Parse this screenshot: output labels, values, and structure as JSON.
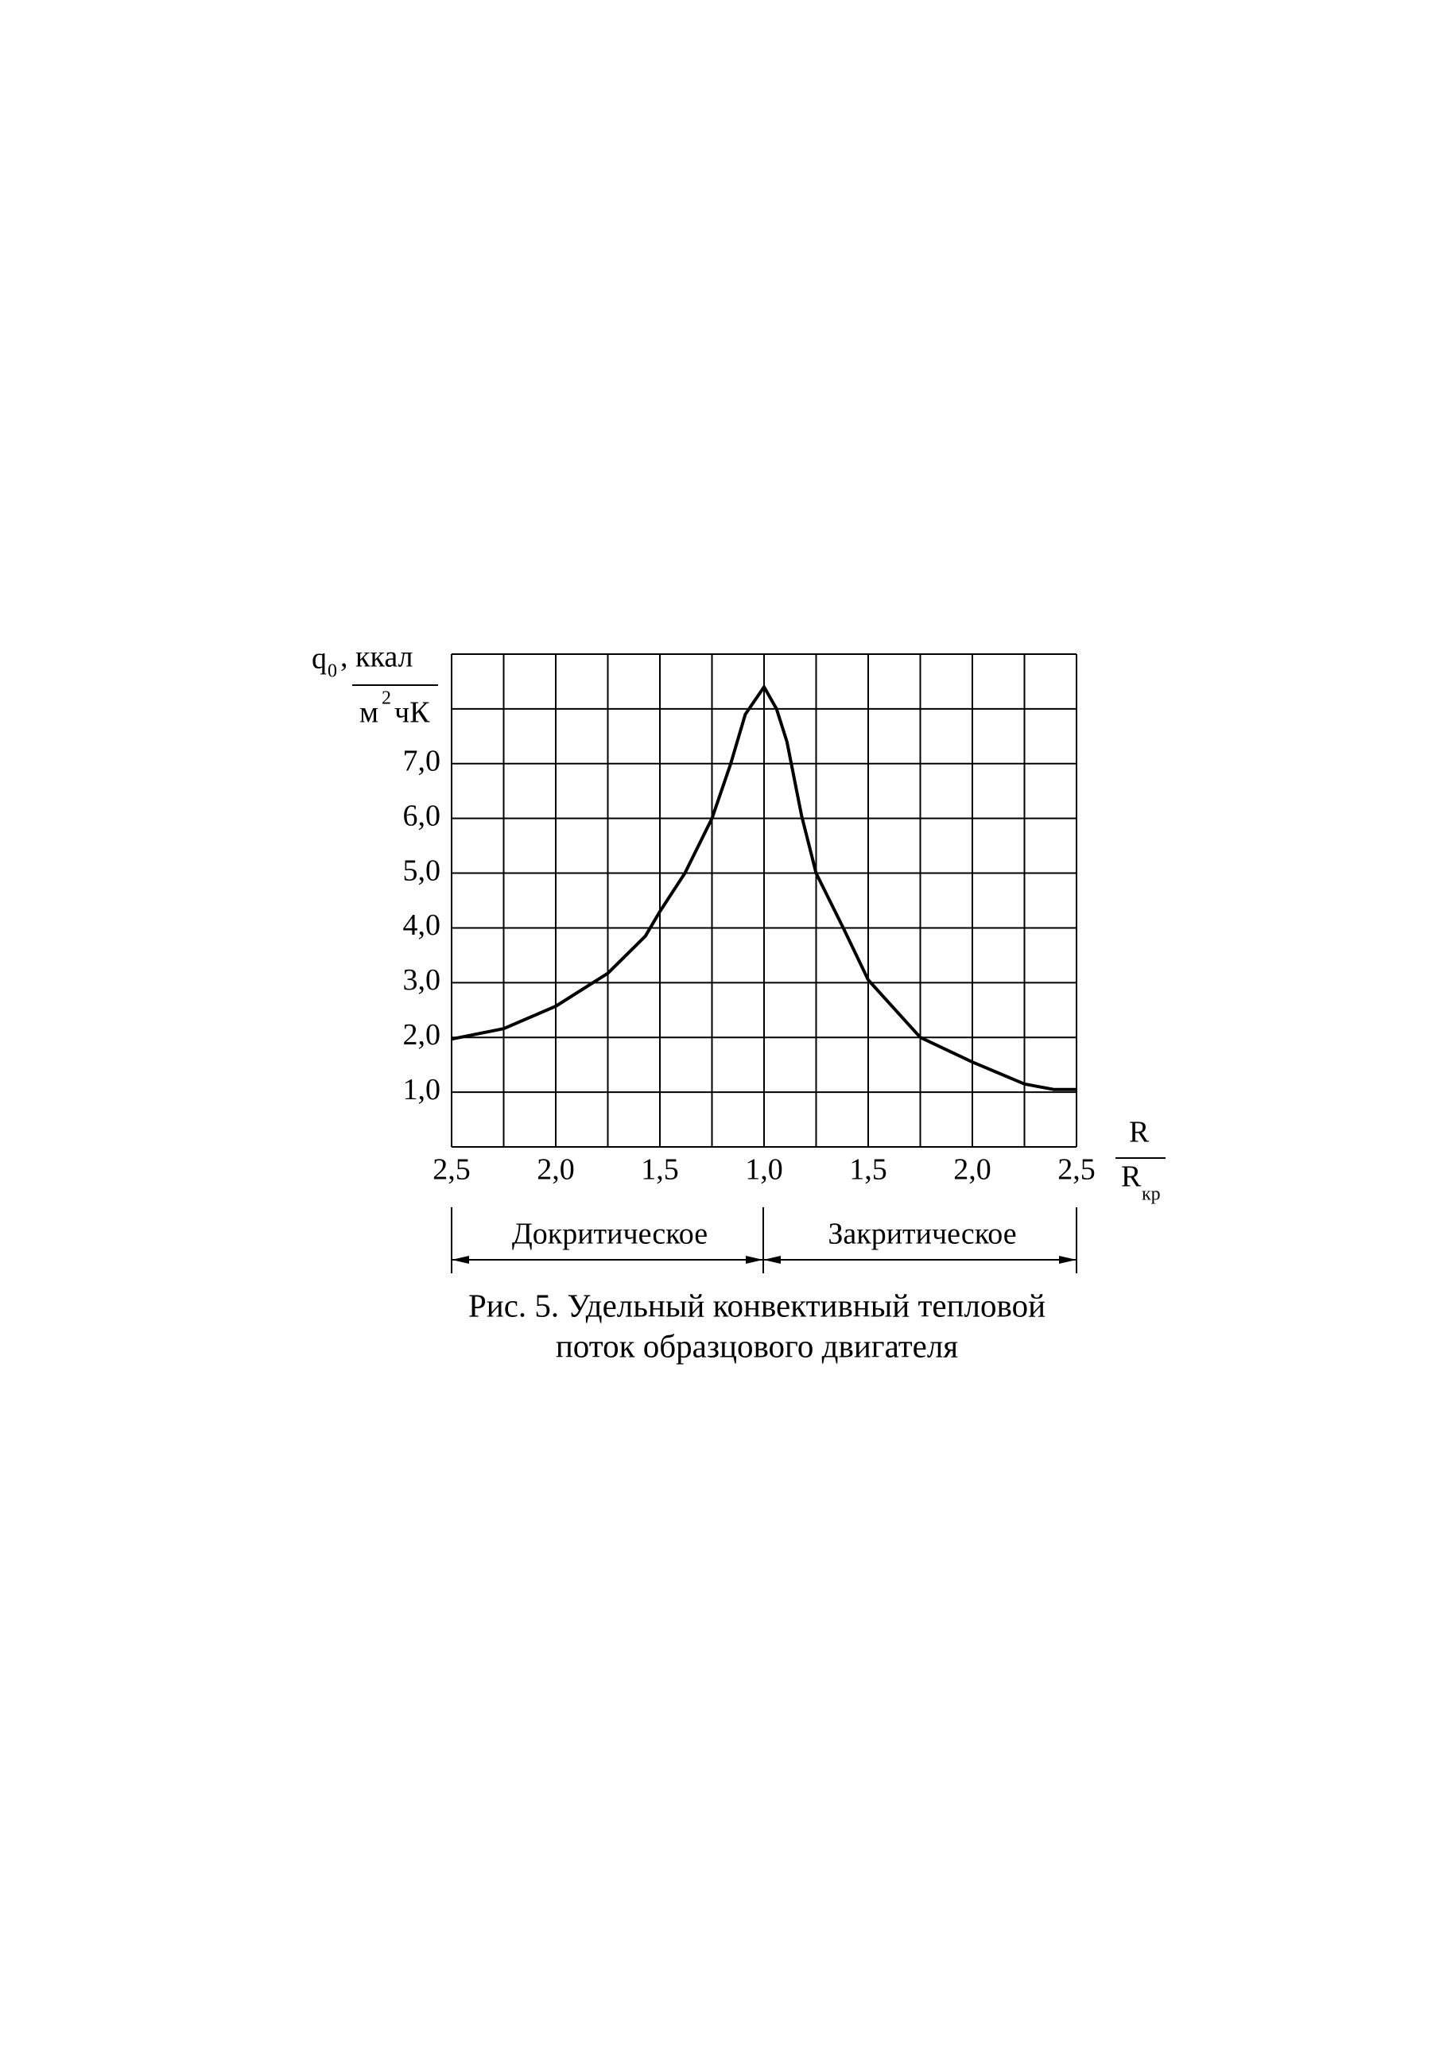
{
  "chart_data": {
    "type": "line",
    "ylabel": {
      "symbol": "q",
      "subscript": "0",
      "numerator": ", ккал",
      "denominator": "м",
      "superscript": "2",
      "denominator_rest": "чК"
    },
    "xlabel": {
      "numerator": "R",
      "denominator": "R",
      "subscript": "кр"
    },
    "x_mirrored": true,
    "regions": [
      "Докритическое",
      "Закритическое"
    ],
    "caption": [
      "Рис. 5. Удельный конвективный тепловой",
      "поток образцового двигателя"
    ],
    "xlim": [
      -2.5,
      2.5
    ],
    "ylim": [
      0,
      9
    ],
    "xticks": [
      {
        "value": -2.5,
        "label": "2,5"
      },
      {
        "value": -2.25,
        "label": null
      },
      {
        "value": -2.0,
        "label": "2,0"
      },
      {
        "value": -1.75,
        "label": null
      },
      {
        "value": -1.5,
        "label": "1,5"
      },
      {
        "value": -1.25,
        "label": null
      },
      {
        "value": 1.0,
        "label": "1,0"
      },
      {
        "value": 1.25,
        "label": null
      },
      {
        "value": 1.5,
        "label": "1,5"
      },
      {
        "value": 1.75,
        "label": null
      },
      {
        "value": 2.0,
        "label": "2,0"
      },
      {
        "value": 2.25,
        "label": null
      },
      {
        "value": 2.5,
        "label": "2,5"
      }
    ],
    "yticks": [
      {
        "value": 0,
        "label": null
      },
      {
        "value": 1,
        "label": "1,0"
      },
      {
        "value": 2,
        "label": "2,0"
      },
      {
        "value": 3,
        "label": "3,0"
      },
      {
        "value": 4,
        "label": "4,0"
      },
      {
        "value": 5,
        "label": "5,0"
      },
      {
        "value": 6,
        "label": "6,0"
      },
      {
        "value": 7,
        "label": "7,0"
      },
      {
        "value": 8,
        "label": null
      },
      {
        "value": 9,
        "label": null
      }
    ],
    "grid": true,
    "series": [
      {
        "color": "#000000",
        "x": [
          -2.5,
          -2.25,
          -2.0,
          -1.75,
          -1.57,
          -1.5,
          -1.38,
          -1.25,
          -1.16,
          -1.09,
          -1.0,
          1.06,
          1.11,
          1.18,
          1.25,
          1.38,
          1.5,
          1.75,
          2.0,
          2.25,
          2.39,
          2.5
        ],
        "values": [
          1.97,
          2.16,
          2.57,
          3.17,
          3.85,
          4.3,
          5.0,
          6.0,
          7.0,
          7.9,
          8.4,
          8.0,
          7.4,
          6.05,
          5.0,
          4.0,
          3.05,
          2.0,
          1.55,
          1.15,
          1.05,
          1.05
        ]
      }
    ]
  }
}
